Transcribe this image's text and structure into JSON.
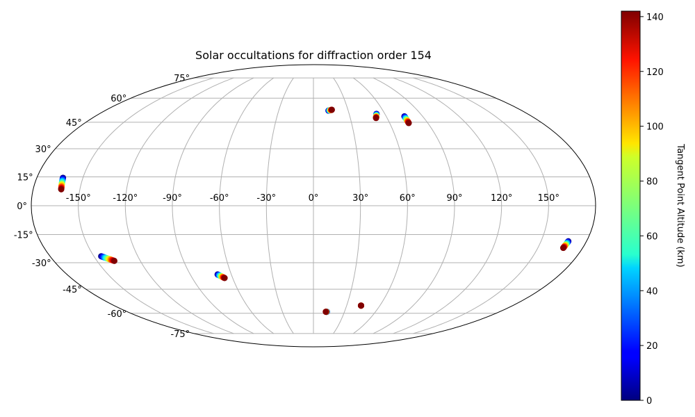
{
  "chart_data": {
    "type": "scatter",
    "projection": "mollweide",
    "title": "Solar occultations for diffraction order 154",
    "grid": true,
    "lon_tick_labels": [
      "-150°",
      "-120°",
      "-90°",
      "-60°",
      "-30°",
      "0°",
      "30°",
      "60°",
      "90°",
      "120°",
      "150°"
    ],
    "lat_tick_labels": [
      "75°",
      "60°",
      "45°",
      "30°",
      "15°",
      "0°",
      "-15°",
      "-30°",
      "-45°",
      "-60°",
      "-75°"
    ],
    "colorbar": {
      "label": "Tangent Point Altitude (km)",
      "colormap": "jet",
      "range": [
        0,
        142
      ],
      "tick_labels": [
        "0",
        "20",
        "40",
        "60",
        "80",
        "100",
        "120",
        "140"
      ]
    },
    "occultations": [
      {
        "lon_start": -163,
        "lat_start": 14.5,
        "lon_end": -162,
        "lat_end": 8.5
      },
      {
        "lon_start": -145,
        "lat_start": -26.5,
        "lon_end": -138,
        "lat_end": -29
      },
      {
        "lon_start": -70,
        "lat_start": -36.5,
        "lon_end": -66,
        "lat_end": -38.5
      },
      {
        "lon_start": 13,
        "lat_start": 52,
        "lon_end": 16,
        "lat_end": 52.5
      },
      {
        "lon_start": 13,
        "lat_start": -59,
        "lon_end": 12,
        "lat_end": -59
      },
      {
        "lon_start": 43,
        "lat_start": -55,
        "lon_end": 43,
        "lat_end": -55
      },
      {
        "lon_start": 53,
        "lat_start": 50,
        "lon_end": 51,
        "lat_end": 47.5
      },
      {
        "lon_start": 75,
        "lat_start": 48.5,
        "lon_end": 75,
        "lat_end": 44.5
      },
      {
        "lon_start": 168,
        "lat_start": -18.5,
        "lon_end": 167,
        "lat_end": -22
      }
    ]
  }
}
